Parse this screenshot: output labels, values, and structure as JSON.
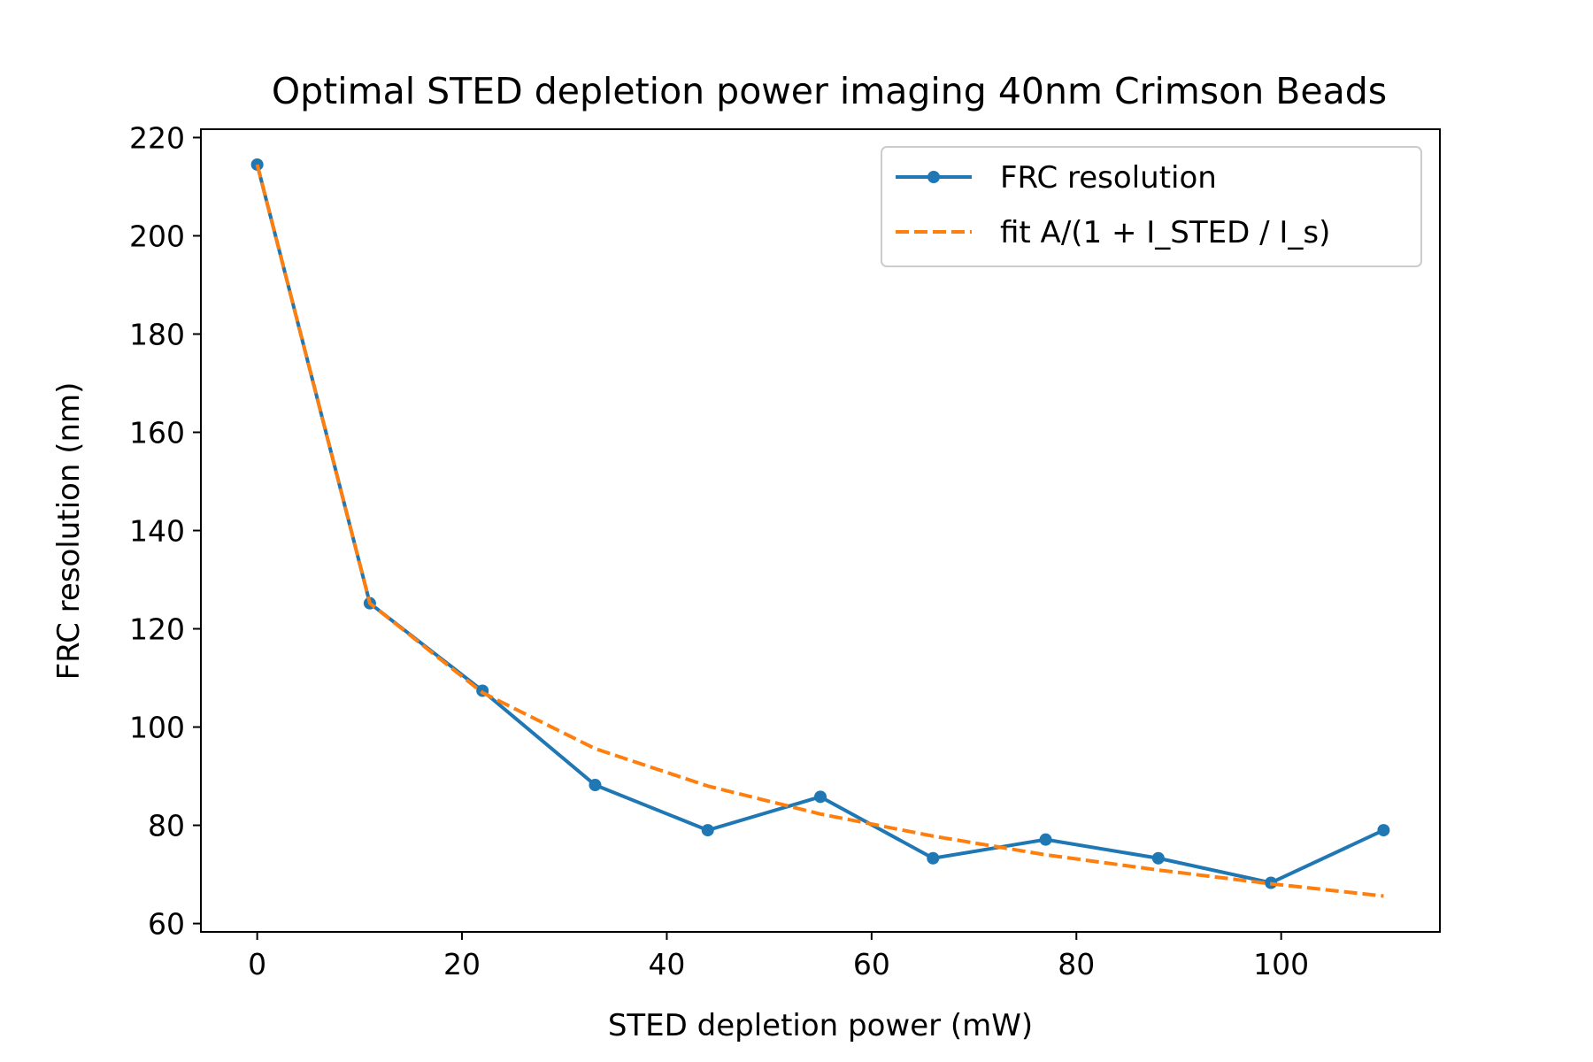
{
  "chart_data": {
    "type": "line",
    "title": "Optimal STED depletion power imaging 40nm Crimson Beads",
    "xlabel": "STED depletion power (mW)",
    "ylabel": "FRC resolution (nm)",
    "xlim": [
      -5.5,
      115.5
    ],
    "ylim": [
      58.3,
      221.7
    ],
    "xticks": [
      0,
      20,
      40,
      60,
      80,
      100
    ],
    "yticks": [
      60,
      80,
      100,
      120,
      140,
      160,
      180,
      200,
      220
    ],
    "grid": false,
    "legend_position": "top-right",
    "series": [
      {
        "name": "FRC resolution",
        "style": "solid-with-markers",
        "color": "#1f77b4",
        "x": [
          0,
          11,
          22,
          33,
          44,
          55,
          66,
          77,
          88,
          99,
          110
        ],
        "y": [
          214.5,
          125.2,
          107.4,
          88.2,
          79.0,
          85.8,
          73.3,
          77.1,
          73.3,
          68.3,
          79.0
        ]
      },
      {
        "name": "fit A/(1 + I_STED / I_s)",
        "style": "dashed",
        "color": "#ff7f0e",
        "x": [
          0,
          11,
          22,
          33,
          44,
          55,
          66,
          77,
          88,
          99,
          110
        ],
        "y": [
          214.5,
          125.2,
          107.0,
          95.6,
          88.0,
          82.3,
          77.8,
          74.0,
          70.9,
          68.1,
          65.6
        ]
      }
    ]
  }
}
